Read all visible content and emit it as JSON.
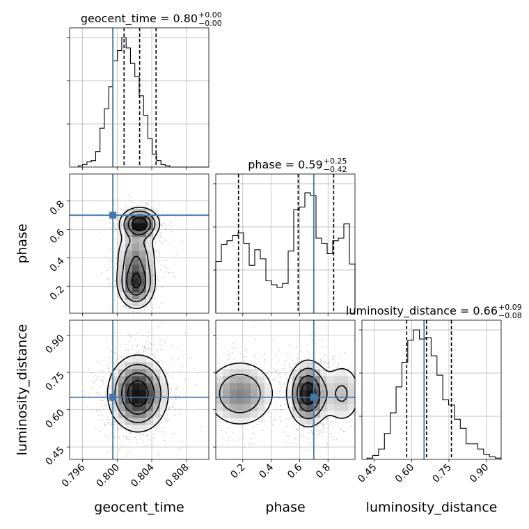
{
  "chart_data": {
    "type": "corner",
    "parameters": [
      {
        "name": "geocent_time",
        "range": [
          0.7945,
          0.8106
        ],
        "ticks": [
          "0.796",
          "0.800",
          "0.804",
          "0.808"
        ],
        "tick_values": [
          0.796,
          0.8,
          0.804,
          0.808
        ]
      },
      {
        "name": "phase",
        "range": [
          0.01,
          0.99
        ],
        "ticks": [
          "0.2",
          "0.4",
          "0.6",
          "0.8"
        ],
        "tick_values": [
          0.2,
          0.4,
          0.6,
          0.8
        ]
      },
      {
        "name": "luminosity_distance",
        "range": [
          0.4,
          0.96
        ],
        "ticks": [
          "0.45",
          "0.60",
          "0.75",
          "0.90"
        ],
        "tick_values": [
          0.45,
          0.6,
          0.75,
          0.9
        ]
      }
    ],
    "titles": [
      {
        "param": "geocent_time",
        "text": "geocent_time = 0.80",
        "plus": "+0.00",
        "minus": "−0.00"
      },
      {
        "param": "phase",
        "text": "phase = 0.59",
        "plus": "+0.25",
        "minus": "−0.42"
      },
      {
        "param": "luminosity_distance",
        "text": "luminosity_distance = 0.66",
        "plus": "+0.09",
        "minus": "−0.08"
      }
    ],
    "truths": {
      "geocent_time": 0.7995,
      "phase": 0.7,
      "luminosity_distance": 0.65
    },
    "quantiles": {
      "geocent_time": [
        0.8008,
        0.8026,
        0.8045
      ],
      "phase": [
        0.17,
        0.59,
        0.84
      ],
      "luminosity_distance": [
        0.58,
        0.66,
        0.76
      ]
    },
    "histograms": {
      "geocent_time": [
        0.01,
        0.02,
        0.04,
        0.05,
        0.12,
        0.3,
        0.45,
        0.62,
        0.82,
        0.9,
        1.0,
        0.92,
        0.8,
        0.7,
        0.55,
        0.4,
        0.22,
        0.1,
        0.05,
        0.02,
        0.01,
        0,
        0,
        0,
        0,
        0,
        0,
        0,
        0,
        0
      ],
      "phase": [
        0.4,
        0.53,
        0.56,
        0.6,
        0.62,
        0.54,
        0.37,
        0.49,
        0.42,
        0.25,
        0.22,
        0.2,
        0.23,
        0.48,
        0.8,
        0.82,
        0.93,
        0.91,
        0.58,
        0.54,
        0.46,
        0.56,
        0.58,
        0.69,
        0.38
      ],
      "luminosity_distance": [
        0.01,
        0.03,
        0.08,
        0.2,
        0.36,
        0.56,
        0.75,
        0.92,
        1.0,
        0.93,
        0.94,
        0.8,
        0.65,
        0.46,
        0.42,
        0.31,
        0.24,
        0.12,
        0.12,
        0.08,
        0.04,
        0.02,
        0.01
      ]
    },
    "grid": true,
    "grid_color": "#b0b0b0",
    "truth_color": "#4477aa"
  }
}
